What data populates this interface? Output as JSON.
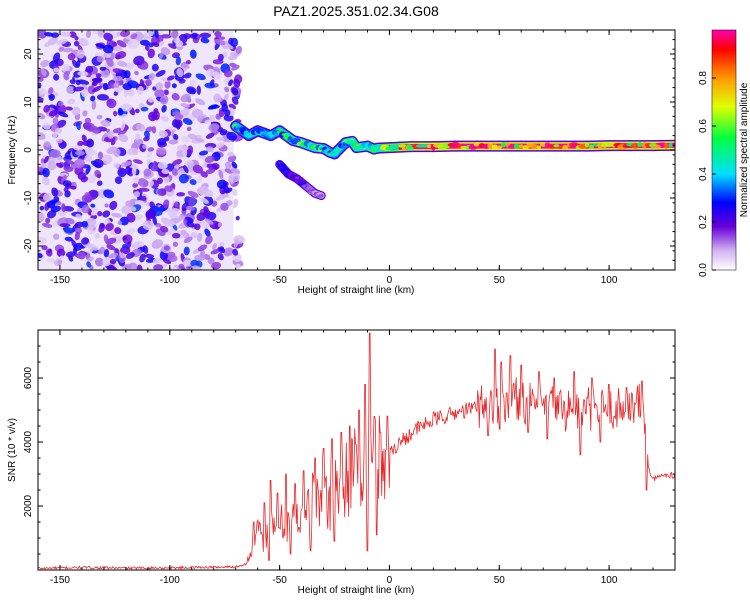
{
  "figure_title": "PAZ1.2025.351.02.34.G08",
  "chart_data": [
    {
      "type": "heatmap",
      "title": "PAZ1.2025.351.02.34.G08",
      "xlabel": "Height of straight line (km)",
      "ylabel": "Frequency (Hz)",
      "xlim": [
        -160,
        130
      ],
      "ylim": [
        -25,
        25
      ],
      "xticks": [
        -150,
        -100,
        -50,
        0,
        50,
        100
      ],
      "yticks": [
        -20,
        -10,
        0,
        10,
        20
      ],
      "noise_region_x": [
        -160,
        -71
      ],
      "signal_trace": {
        "x": [
          -70,
          -67,
          -64,
          -60,
          -57,
          -54,
          -50,
          -47,
          -44,
          -40,
          -37,
          -34,
          -30,
          -27,
          -25,
          -20,
          -17,
          -15,
          -10,
          -7,
          -5,
          0,
          5,
          10,
          20,
          30,
          40,
          50,
          60,
          70,
          80,
          90,
          100,
          110,
          120,
          130
        ],
        "frequency": [
          5,
          4,
          3,
          4,
          3.5,
          3,
          4,
          3,
          2,
          1.5,
          1,
          0.5,
          0.3,
          -0.5,
          -0.8,
          1.5,
          1.8,
          0.5,
          0.8,
          0.2,
          0.4,
          0.5,
          0.6,
          0.7,
          0.7,
          0.8,
          0.8,
          0.8,
          0.8,
          0.8,
          0.8,
          0.8,
          0.9,
          0.9,
          0.9,
          1.0
        ],
        "amplitude": [
          0.55,
          0.5,
          0.45,
          0.5,
          0.45,
          0.45,
          0.5,
          0.55,
          0.55,
          0.6,
          0.6,
          0.6,
          0.55,
          0.5,
          0.45,
          0.55,
          0.6,
          0.6,
          0.65,
          0.7,
          0.75,
          0.8,
          0.85,
          0.9,
          0.95,
          0.95,
          0.95,
          0.95,
          0.95,
          0.95,
          0.95,
          0.95,
          0.95,
          0.95,
          0.95,
          0.95
        ]
      },
      "branch_trace": {
        "x": [
          -50,
          -46,
          -42,
          -38,
          -34,
          -31
        ],
        "frequency": [
          -3,
          -5,
          -6,
          -7.5,
          -9,
          -9.5
        ],
        "amplitude": [
          0.3,
          0.3,
          0.25,
          0.2,
          0.15,
          0.1
        ]
      },
      "colorbar": {
        "label": "Normalized spectral amplitude",
        "range": [
          0,
          1
        ],
        "ticks": [
          "0.0",
          "0.2",
          "0.4",
          "0.6",
          "0.8"
        ],
        "colormap": "rainbow-light"
      }
    },
    {
      "type": "line",
      "xlabel": "Height of straight line (km)",
      "ylabel": "SNR (10 * v/v)",
      "xlim": [
        -160,
        130
      ],
      "ylim": [
        0,
        7500
      ],
      "xticks": [
        -150,
        -100,
        -50,
        0,
        50,
        100
      ],
      "yticks": [
        2000,
        4000,
        6000
      ],
      "color": "#e8292b",
      "series": [
        {
          "name": "SNR",
          "x": [
            -160,
            -140,
            -120,
            -100,
            -80,
            -70,
            -65,
            -62,
            -60,
            -58,
            -55,
            -52,
            -50,
            -48,
            -45,
            -42,
            -40,
            -37,
            -35,
            -32,
            -30,
            -27,
            -25,
            -22,
            -20,
            -18,
            -15,
            -12,
            -10,
            -9,
            -8,
            -6,
            -4,
            -2,
            0,
            5,
            10,
            15,
            20,
            25,
            30,
            35,
            40,
            43,
            45,
            47,
            50,
            55,
            60,
            65,
            70,
            75,
            80,
            85,
            87,
            90,
            95,
            100,
            105,
            110,
            113,
            115,
            116,
            118,
            120,
            125,
            130
          ],
          "y": [
            50,
            80,
            60,
            70,
            90,
            100,
            200,
            800,
            1200,
            900,
            1400,
            1100,
            1600,
            1300,
            1800,
            1500,
            2000,
            1800,
            2300,
            2100,
            2500,
            2200,
            2800,
            2600,
            3000,
            2900,
            3200,
            3100,
            3300,
            3400,
            3200,
            3300,
            3500,
            3600,
            3700,
            4000,
            4300,
            4500,
            4700,
            4800,
            4900,
            5000,
            5100,
            5200,
            5300,
            5100,
            5200,
            5400,
            5300,
            5200,
            5100,
            5150,
            5000,
            5100,
            4900,
            5050,
            5000,
            5100,
            5000,
            5100,
            5200,
            5150,
            4800,
            3200,
            2800,
            3000,
            2950
          ],
          "spikes": [
            {
              "x": -62,
              "y": 1500
            },
            {
              "x": -57,
              "y": 2100
            },
            {
              "x": -54,
              "y": 2800
            },
            {
              "x": -51,
              "y": 2400
            },
            {
              "x": -47,
              "y": 3000
            },
            {
              "x": -43,
              "y": 2700
            },
            {
              "x": -39,
              "y": 3100
            },
            {
              "x": -34,
              "y": 3500
            },
            {
              "x": -30,
              "y": 3800
            },
            {
              "x": -26,
              "y": 4100
            },
            {
              "x": -22,
              "y": 4300
            },
            {
              "x": -18,
              "y": 4500
            },
            {
              "x": -14,
              "y": 5000
            },
            {
              "x": -11,
              "y": 5800
            },
            {
              "x": -9,
              "y": 7400
            },
            {
              "x": -7,
              "y": 4800
            },
            {
              "x": -4,
              "y": 4300
            },
            {
              "x": 45,
              "y": 7000
            },
            {
              "x": 48,
              "y": 6900
            },
            {
              "x": 51,
              "y": 6500
            },
            {
              "x": 55,
              "y": 6700
            },
            {
              "x": 60,
              "y": 6400
            },
            {
              "x": 68,
              "y": 6200
            },
            {
              "x": 75,
              "y": 6000
            },
            {
              "x": 84,
              "y": 6200
            },
            {
              "x": 92,
              "y": 6000
            },
            {
              "x": 100,
              "y": 5800
            },
            {
              "x": 108,
              "y": 5700
            },
            {
              "x": 115,
              "y": 5900
            }
          ],
          "dips": [
            {
              "x": -55,
              "y": 300
            },
            {
              "x": -45,
              "y": 500
            },
            {
              "x": -36,
              "y": 600
            },
            {
              "x": -25,
              "y": 900
            },
            {
              "x": -10,
              "y": 600
            },
            {
              "x": -6,
              "y": 1100
            },
            {
              "x": 45,
              "y": 4200
            },
            {
              "x": 50,
              "y": 4400
            },
            {
              "x": 63,
              "y": 4300
            },
            {
              "x": 72,
              "y": 4100
            },
            {
              "x": 87,
              "y": 3600
            },
            {
              "x": 96,
              "y": 4000
            },
            {
              "x": 117,
              "y": 2500
            }
          ]
        }
      ]
    }
  ]
}
